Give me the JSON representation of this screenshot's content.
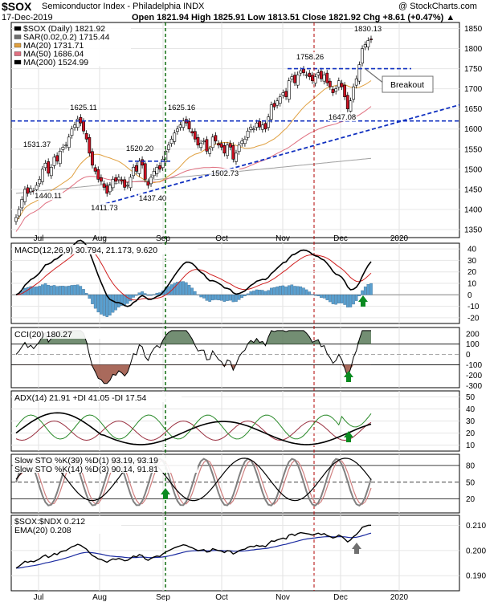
{
  "header": {
    "symbol": "$SOX",
    "name": "Semiconductor Index - Philadelphia  INDX",
    "date": "17-Dec-2019",
    "ohlc": "Open 1821.94  High 1825.91  Low 1813.51  Close 1821.92  Chg +8.61 (+0.47%) ▲",
    "credit": "@ StockCharts.com"
  },
  "colors": {
    "up": "#ffffff",
    "down": "#cc1122",
    "ma20": "#e0a040",
    "ma50": "#e07080",
    "ma200": "#a0a0a0",
    "macd_hist": "#5aa0d0",
    "cci_fill": "#5a7a5a",
    "adx": "#000000",
    "plus_di": "#2a8a2a",
    "minus_di": "#9a3040",
    "dark_green": "#006400",
    "dark_red": "#b00000",
    "blue": "#1030c0",
    "arrow_green": "#0a8a20",
    "arrow_gray": "#707070"
  },
  "price_panel": {
    "legend": [
      "$SOX (Daily) 1821.92",
      "SAR(0.02,0.2) 1715.44",
      "MA(20) 1731.71",
      "MA(50) 1686.04",
      "MA(200) 1524.99"
    ],
    "yticks": [
      "1850",
      "1800",
      "1750",
      "1700",
      "1650",
      "1600",
      "1550",
      "1500",
      "1450",
      "1400",
      "1350"
    ],
    "annotations": [
      "1830.13",
      "1758.26",
      "1625.11",
      "1625.16",
      "1531.37",
      "1520.20",
      "1440.11",
      "1437.40",
      "1411.73",
      "1502.73",
      "1647.08"
    ],
    "breakout_label": "Breakout"
  },
  "macd_panel": {
    "label": "MACD(12,26,9) 30.794, 21.173, 9.620",
    "yticks": [
      "40",
      "30",
      "20",
      "10",
      "0",
      "-10",
      "-20"
    ]
  },
  "cci_panel": {
    "label": "CCI(20) 180.27",
    "yticks": [
      "200",
      "100",
      "0",
      "-100",
      "-200",
      "-300"
    ]
  },
  "adx_panel": {
    "label": "ADX(14) 21.91 +DI 41.05 -DI 17.54",
    "yticks": [
      "50",
      "40",
      "30",
      "20",
      "10"
    ]
  },
  "sto_panel": {
    "label1": "Slow STO %K(39) %D(1) 93.19, 93.19",
    "label2": "Slow STO %K(14) %D(3) 90.14, 91.81",
    "yticks": [
      "80",
      "50",
      "20"
    ]
  },
  "ratio_panel": {
    "label": "$SOX:$NDX 0.212",
    "ema_label": "EMA(20) 0.208",
    "yticks": [
      "0.210",
      "0.200",
      "0.190"
    ]
  },
  "xaxis": {
    "labels": [
      "Jul",
      "Aug",
      "Sep",
      "Oct",
      "Nov",
      "Dec",
      "2020"
    ]
  },
  "chart_data": {
    "type": "candlestick",
    "title": "$SOX Semiconductor Index - Philadelphia INDX",
    "ylim": [
      1330,
      1865
    ],
    "close": [
      1380,
      1400,
      1425,
      1450,
      1440,
      1452,
      1445,
      1460,
      1475,
      1500,
      1515,
      1490,
      1505,
      1530,
      1520,
      1545,
      1555,
      1560,
      1580,
      1600,
      1610,
      1625,
      1615,
      1595,
      1575,
      1540,
      1510,
      1495,
      1475,
      1470,
      1455,
      1440,
      1460,
      1475,
      1470,
      1480,
      1470,
      1455,
      1460,
      1480,
      1505,
      1495,
      1520,
      1510,
      1475,
      1460,
      1480,
      1495,
      1505,
      1500,
      1525,
      1545,
      1560,
      1575,
      1590,
      1600,
      1610,
      1620,
      1615,
      1600,
      1590,
      1575,
      1560,
      1565,
      1570,
      1545,
      1550,
      1580,
      1570,
      1560,
      1555,
      1540,
      1560,
      1555,
      1525,
      1540,
      1560,
      1570,
      1575,
      1595,
      1605,
      1600,
      1615,
      1605,
      1610,
      1600,
      1630,
      1660,
      1655,
      1670,
      1680,
      1690,
      1680,
      1720,
      1730,
      1715,
      1735,
      1745,
      1740,
      1735,
      1730,
      1720,
      1730,
      1740,
      1725,
      1735,
      1715,
      1705,
      1690,
      1700,
      1720,
      1705,
      1680,
      1650,
      1670,
      1705,
      1725,
      1760,
      1800,
      1810,
      1820,
      1822
    ]
  }
}
